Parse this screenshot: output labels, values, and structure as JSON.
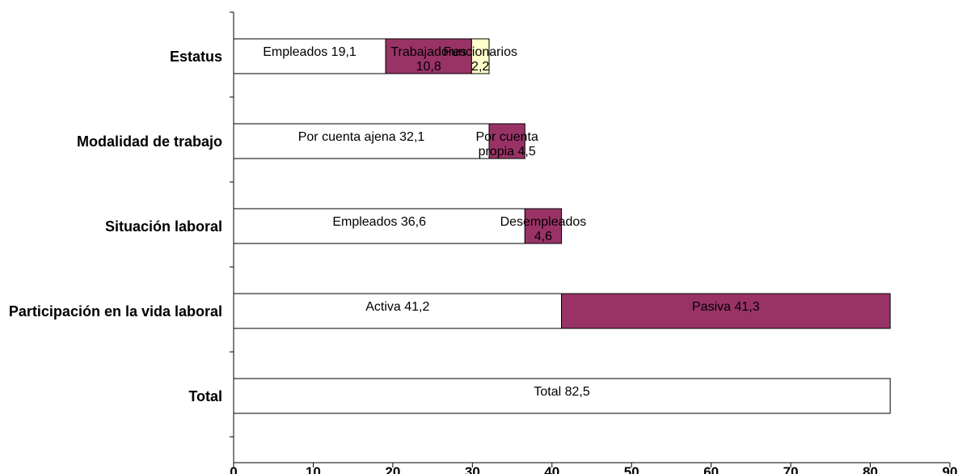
{
  "chart_data": {
    "type": "stacked-bar-horizontal",
    "categories": [
      "Estatus",
      "Modalidad de trabajo",
      "Situación laboral",
      "Participación en la vida laboral",
      "Total"
    ],
    "series": [
      {
        "color": "#ffffff",
        "values": [
          19.1,
          32.1,
          36.6,
          41.2,
          82.5
        ],
        "value_labels": [
          "Empleados 19,1",
          "Por cuenta ajena 32,1",
          "Empleados 36,6",
          "Activa 41,2",
          "Total 82,5"
        ]
      },
      {
        "color": "#993366",
        "values": [
          10.8,
          4.5,
          4.6,
          41.3,
          null
        ],
        "value_labels": [
          "Trabajadores 10,8",
          "Por cuenta propia 4,5",
          "Desempleados 4,6",
          "Pasiva 41,3",
          null
        ]
      },
      {
        "color": "#ffffcc",
        "values": [
          2.2,
          null,
          null,
          null,
          null
        ],
        "value_labels": [
          "Funcionarios 2,2",
          null,
          null,
          null,
          null
        ]
      }
    ],
    "xlim": [
      0,
      90
    ],
    "xticks": [
      0,
      10,
      20,
      30,
      40,
      50,
      60,
      70,
      80,
      90
    ]
  }
}
